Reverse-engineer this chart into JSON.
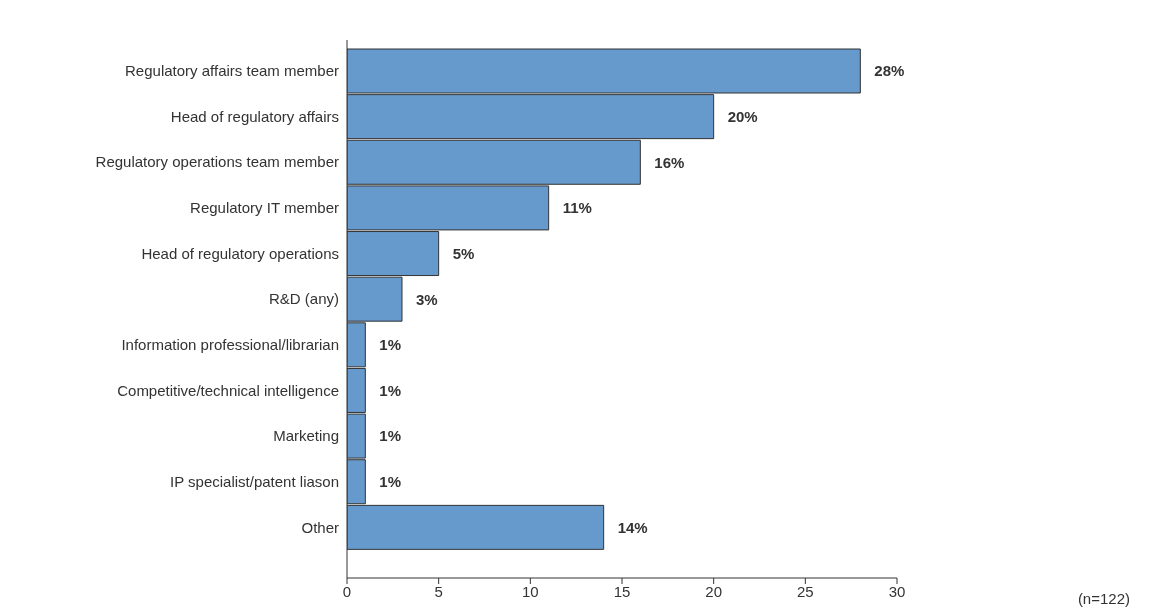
{
  "chart_data": {
    "type": "bar",
    "orientation": "horizontal",
    "categories": [
      "Regulatory affairs team member",
      "Head of regulatory affairs",
      "Regulatory operations team member",
      "Regulatory IT member",
      "Head of regulatory operations",
      "R&D (any)",
      "Information professional/librarian",
      "Competitive/technical intelligence",
      "Marketing",
      "IP specialist/patent liason",
      "Other"
    ],
    "values": [
      28,
      20,
      16,
      11,
      5,
      3,
      1,
      1,
      1,
      1,
      14
    ],
    "value_labels": [
      "28%",
      "20%",
      "16%",
      "11%",
      "5%",
      "3%",
      "1%",
      "1%",
      "1%",
      "1%",
      "14%"
    ],
    "color": "#6699cc",
    "xlim": [
      0,
      30
    ],
    "xticks": [
      0,
      5,
      10,
      15,
      20,
      25,
      30
    ],
    "grid": false,
    "annotations": [
      "(n=122)"
    ]
  }
}
